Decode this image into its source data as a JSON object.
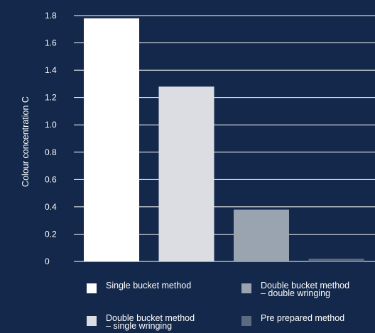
{
  "chart_data": {
    "type": "bar",
    "categories": [
      "Single bucket method",
      "Double bucket method – single wringing",
      "Double bucket method – double wringing",
      "Pre prepared method"
    ],
    "values": [
      1.78,
      1.28,
      0.38,
      0.02
    ],
    "colors": [
      "#ffffff",
      "#dcdde2",
      "#9aa3b0",
      "#5b6a80"
    ],
    "xlabel": "",
    "ylabel": "Colour concentration C",
    "ylim": [
      0,
      1.8
    ],
    "yticks": [
      "0",
      "0.2",
      "0.4",
      "0.6",
      "0.8",
      "1.0",
      "1.2",
      "1.4",
      "1.6",
      "1.8"
    ],
    "grid": true,
    "legend_position": "bottom"
  },
  "legend": {
    "single_bucket": {
      "line1": "Single bucket method"
    },
    "double_single": {
      "line1": "Double bucket method",
      "line2": "– single wringing"
    },
    "double_double": {
      "line1": "Double bucket method",
      "line2": "– double wringing"
    },
    "pre_prepared": {
      "line1": "Pre prepared method"
    }
  }
}
